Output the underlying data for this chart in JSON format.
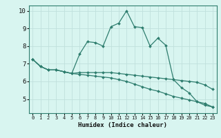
{
  "xlabel": "Humidex (Indice chaleur)",
  "xlim": [
    -0.5,
    23.5
  ],
  "ylim": [
    4.2,
    10.3
  ],
  "yticks": [
    5,
    6,
    7,
    8,
    9,
    10
  ],
  "xticks": [
    0,
    1,
    2,
    3,
    4,
    5,
    6,
    7,
    8,
    9,
    10,
    11,
    12,
    13,
    14,
    15,
    16,
    17,
    18,
    19,
    20,
    21,
    22,
    23
  ],
  "bg_color": "#d8f5f0",
  "grid_color": "#c0e0dc",
  "line_color": "#2e7d6e",
  "line1_x": [
    0,
    1,
    2,
    3,
    4,
    5,
    6,
    7,
    8,
    9,
    10,
    11,
    12,
    13,
    14,
    15,
    16,
    17,
    18,
    19,
    20,
    21,
    22,
    23
  ],
  "line1_y": [
    7.25,
    6.85,
    6.65,
    6.65,
    6.55,
    6.45,
    7.55,
    8.25,
    8.2,
    8.0,
    9.1,
    9.3,
    10.0,
    9.1,
    9.05,
    8.0,
    8.45,
    8.05,
    6.1,
    5.65,
    5.35,
    4.85,
    4.65,
    4.55
  ],
  "line2_x": [
    0,
    1,
    2,
    3,
    4,
    5,
    6,
    7,
    8,
    9,
    10,
    11,
    12,
    13,
    14,
    15,
    16,
    17,
    18,
    19,
    20,
    21,
    22,
    23
  ],
  "line2_y": [
    7.25,
    6.85,
    6.65,
    6.65,
    6.55,
    6.45,
    6.5,
    6.5,
    6.5,
    6.5,
    6.5,
    6.45,
    6.4,
    6.35,
    6.3,
    6.25,
    6.2,
    6.15,
    6.1,
    6.05,
    6.0,
    5.95,
    5.8,
    5.55
  ],
  "line3_x": [
    0,
    1,
    2,
    3,
    4,
    5,
    6,
    7,
    8,
    9,
    10,
    11,
    12,
    13,
    14,
    15,
    16,
    17,
    18,
    19,
    20,
    21,
    22,
    23
  ],
  "line3_y": [
    7.25,
    6.85,
    6.65,
    6.65,
    6.55,
    6.45,
    6.4,
    6.35,
    6.3,
    6.25,
    6.2,
    6.1,
    6.0,
    5.85,
    5.7,
    5.55,
    5.45,
    5.3,
    5.15,
    5.05,
    4.95,
    4.85,
    4.75,
    4.55
  ]
}
